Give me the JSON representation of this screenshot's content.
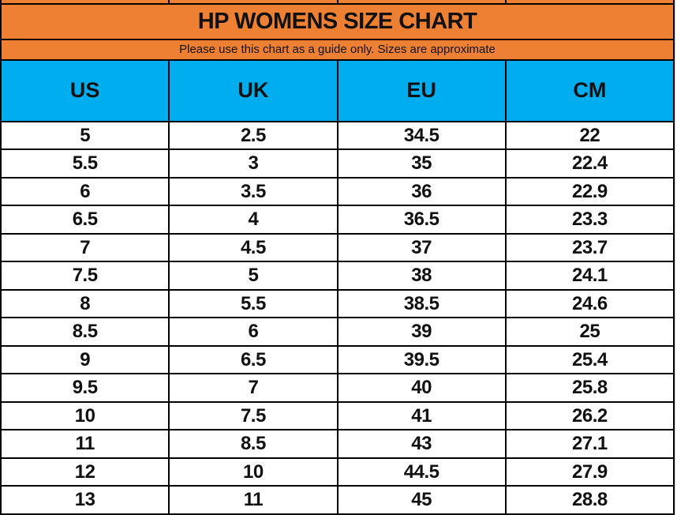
{
  "colors": {
    "banner_orange": "#ED8032",
    "header_blue": "#00AEF0",
    "grid_black": "#000000",
    "row_white": "#FFFFFF",
    "text_black": "#111111"
  },
  "chart_data": {
    "type": "table",
    "title": "HP WOMENS SIZE CHART",
    "subtitle": "Please use this chart as a guide only. Sizes are approximate",
    "columns": [
      "US",
      "UK",
      "EU",
      "CM"
    ],
    "rows": [
      [
        "5",
        "2.5",
        "34.5",
        "22"
      ],
      [
        "5.5",
        "3",
        "35",
        "22.4"
      ],
      [
        "6",
        "3.5",
        "36",
        "22.9"
      ],
      [
        "6.5",
        "4",
        "36.5",
        "23.3"
      ],
      [
        "7",
        "4.5",
        "37",
        "23.7"
      ],
      [
        "7.5",
        "5",
        "38",
        "24.1"
      ],
      [
        "8",
        "5.5",
        "38.5",
        "24.6"
      ],
      [
        "8.5",
        "6",
        "39",
        "25"
      ],
      [
        "9",
        "6.5",
        "39.5",
        "25.4"
      ],
      [
        "9.5",
        "7",
        "40",
        "25.8"
      ],
      [
        "10",
        "7.5",
        "41",
        "26.2"
      ],
      [
        "11",
        "8.5",
        "43",
        "27.1"
      ],
      [
        "12",
        "10",
        "44.5",
        "27.9"
      ],
      [
        "13",
        "11",
        "45",
        "28.8"
      ]
    ],
    "layout": {
      "grid": "on",
      "column_count": 4,
      "row_count": 14
    }
  }
}
